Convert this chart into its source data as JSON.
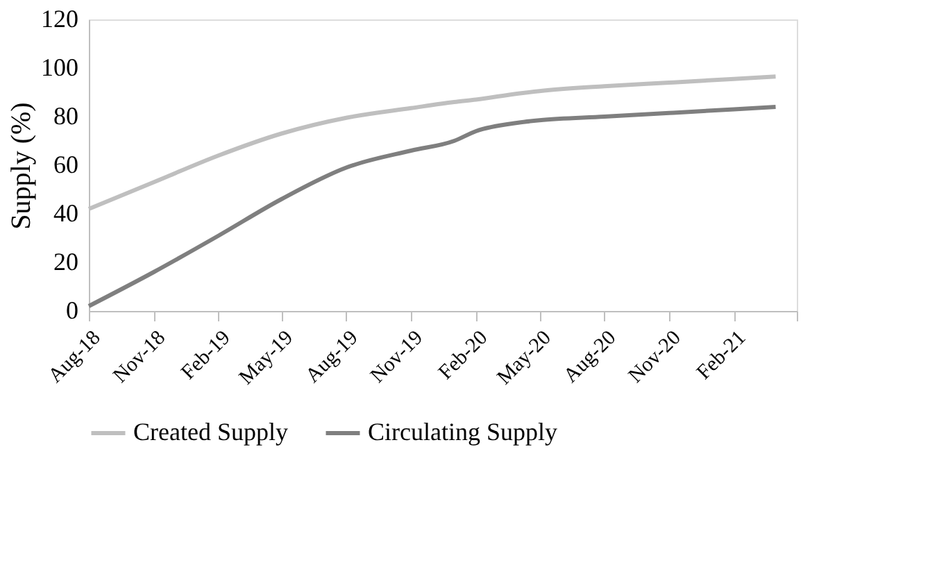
{
  "chart_data": {
    "type": "line",
    "ylabel": "Supply (%)",
    "xlim": [
      "2018-08",
      "2021-05"
    ],
    "xticks": [
      {
        "value": "2018-08",
        "label": "Aug-18"
      },
      {
        "value": "2018-11",
        "label": "Nov-18"
      },
      {
        "value": "2019-02",
        "label": "Feb-19"
      },
      {
        "value": "2019-05",
        "label": "May-19"
      },
      {
        "value": "2019-08",
        "label": "Aug-19"
      },
      {
        "value": "2019-11",
        "label": "Nov-19"
      },
      {
        "value": "2020-02",
        "label": "Feb-20"
      },
      {
        "value": "2020-05",
        "label": "May-20"
      },
      {
        "value": "2020-08",
        "label": "Aug-20"
      },
      {
        "value": "2020-11",
        "label": "Nov-20"
      },
      {
        "value": "2021-02",
        "label": "Feb-21"
      },
      {
        "value": "2021-05",
        "label": null
      }
    ],
    "ylim": [
      0,
      120
    ],
    "yticks": [
      0,
      20,
      40,
      60,
      80,
      100,
      120
    ],
    "grid": false,
    "legend": "bottom",
    "marker": "none",
    "line_style": "solid",
    "x": [
      "2018-08",
      "2018-11",
      "2019-02",
      "2019-05",
      "2019-08",
      "2019-11",
      "2020-01",
      "2020-02",
      "2020-04",
      "2020-05",
      "2020-08",
      "2020-11",
      "2021-02",
      "2021-04"
    ],
    "series": [
      {
        "name": "Created Supply",
        "color": "#bfbfbf",
        "values": [
          42,
          53,
          64,
          73,
          79.5,
          83.5,
          86,
          87,
          89.5,
          90.5,
          92.5,
          94,
          95.5,
          96.5
        ]
      },
      {
        "name": "Circulating Supply",
        "color": "#7f7f7f",
        "values": [
          2,
          16,
          31,
          46,
          59,
          66,
          70,
          74,
          77.5,
          78.5,
          80,
          81.5,
          83,
          84
        ]
      }
    ]
  }
}
